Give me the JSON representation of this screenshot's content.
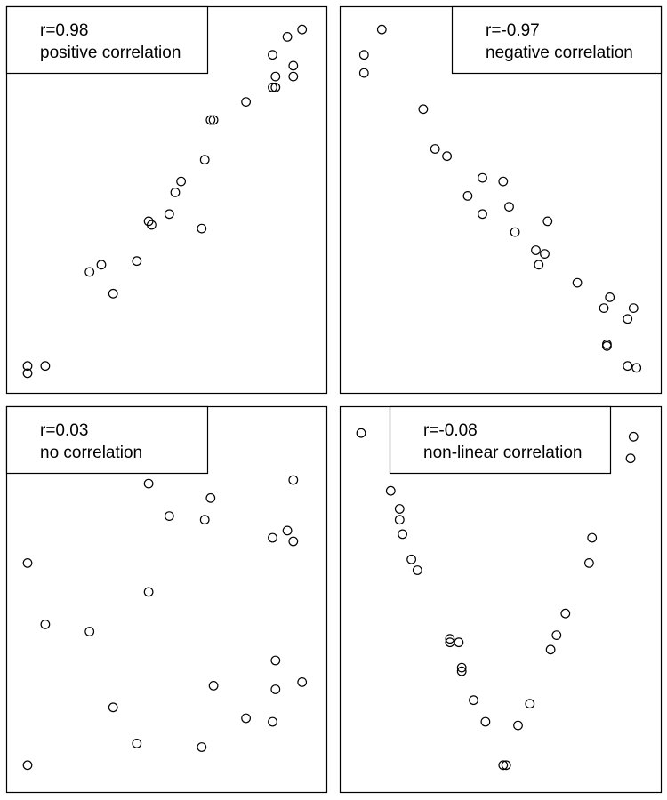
{
  "chart_data": [
    {
      "type": "scatter",
      "legend_lines": [
        "r=0.98",
        "positive correlation"
      ],
      "legend_position": "top-left",
      "grid": false,
      "xlim": [
        0,
        1
      ],
      "ylim": [
        0,
        1
      ],
      "points": [
        [
          0.03,
          0.02
        ],
        [
          0.03,
          0.04
        ],
        [
          0.09,
          0.04
        ],
        [
          0.24,
          0.3
        ],
        [
          0.28,
          0.32
        ],
        [
          0.32,
          0.24
        ],
        [
          0.4,
          0.33
        ],
        [
          0.44,
          0.44
        ],
        [
          0.45,
          0.43
        ],
        [
          0.51,
          0.46
        ],
        [
          0.53,
          0.52
        ],
        [
          0.55,
          0.55
        ],
        [
          0.62,
          0.42
        ],
        [
          0.63,
          0.61
        ],
        [
          0.65,
          0.72
        ],
        [
          0.66,
          0.72
        ],
        [
          0.77,
          0.77
        ],
        [
          0.86,
          0.81
        ],
        [
          0.87,
          0.81
        ],
        [
          0.87,
          0.84
        ],
        [
          0.86,
          0.9
        ],
        [
          0.91,
          0.95
        ],
        [
          0.93,
          0.84
        ],
        [
          0.93,
          0.87
        ],
        [
          0.96,
          0.97
        ]
      ]
    },
    {
      "type": "scatter",
      "legend_lines": [
        "r=-0.97",
        "negative correlation"
      ],
      "legend_position": "top-right",
      "grid": false,
      "xlim": [
        0,
        1
      ],
      "ylim": [
        0,
        1
      ],
      "points": [
        [
          0.04,
          0.85
        ],
        [
          0.04,
          0.9
        ],
        [
          0.1,
          0.97
        ],
        [
          0.24,
          0.75
        ],
        [
          0.28,
          0.64
        ],
        [
          0.32,
          0.62
        ],
        [
          0.39,
          0.51
        ],
        [
          0.44,
          0.46
        ],
        [
          0.44,
          0.56
        ],
        [
          0.51,
          0.55
        ],
        [
          0.53,
          0.48
        ],
        [
          0.55,
          0.41
        ],
        [
          0.62,
          0.36
        ],
        [
          0.65,
          0.35
        ],
        [
          0.63,
          0.32
        ],
        [
          0.66,
          0.44
        ],
        [
          0.76,
          0.27
        ],
        [
          0.85,
          0.2
        ],
        [
          0.87,
          0.23
        ],
        [
          0.95,
          0.2
        ],
        [
          0.93,
          0.17
        ],
        [
          0.86,
          0.095
        ],
        [
          0.86,
          0.1
        ],
        [
          0.93,
          0.04
        ],
        [
          0.96,
          0.035
        ]
      ]
    },
    {
      "type": "scatter",
      "legend_lines": [
        "r=0.03",
        "no correlation"
      ],
      "legend_position": "top-left",
      "grid": false,
      "xlim": [
        0,
        1
      ],
      "ylim": [
        0,
        1
      ],
      "points": [
        [
          0.03,
          0.04
        ],
        [
          0.03,
          0.6
        ],
        [
          0.09,
          0.43
        ],
        [
          0.24,
          0.41
        ],
        [
          0.32,
          0.2
        ],
        [
          0.4,
          0.1
        ],
        [
          0.44,
          0.52
        ],
        [
          0.44,
          0.82
        ],
        [
          0.51,
          0.73
        ],
        [
          0.53,
          0.88
        ],
        [
          0.55,
          0.95
        ],
        [
          0.62,
          0.09
        ],
        [
          0.63,
          0.72
        ],
        [
          0.65,
          0.78
        ],
        [
          0.66,
          0.26
        ],
        [
          0.77,
          0.17
        ],
        [
          0.86,
          0.16
        ],
        [
          0.87,
          0.25
        ],
        [
          0.87,
          0.33
        ],
        [
          0.86,
          0.67
        ],
        [
          0.91,
          0.69
        ],
        [
          0.93,
          0.66
        ],
        [
          0.93,
          0.83
        ],
        [
          0.96,
          0.27
        ]
      ]
    },
    {
      "type": "scatter",
      "legend_lines": [
        "r=-0.08",
        "non-linear correlation"
      ],
      "legend_position": "top",
      "grid": false,
      "xlim": [
        0,
        1
      ],
      "ylim": [
        0,
        1
      ],
      "points": [
        [
          0.03,
          0.96
        ],
        [
          0.13,
          0.8
        ],
        [
          0.16,
          0.75
        ],
        [
          0.16,
          0.72
        ],
        [
          0.17,
          0.68
        ],
        [
          0.2,
          0.61
        ],
        [
          0.22,
          0.58
        ],
        [
          0.33,
          0.39
        ],
        [
          0.33,
          0.38
        ],
        [
          0.36,
          0.38
        ],
        [
          0.37,
          0.31
        ],
        [
          0.37,
          0.3
        ],
        [
          0.41,
          0.22
        ],
        [
          0.45,
          0.16
        ],
        [
          0.51,
          0.04
        ],
        [
          0.52,
          0.04
        ],
        [
          0.56,
          0.15
        ],
        [
          0.6,
          0.21
        ],
        [
          0.67,
          0.36
        ],
        [
          0.69,
          0.4
        ],
        [
          0.72,
          0.46
        ],
        [
          0.8,
          0.6
        ],
        [
          0.81,
          0.67
        ],
        [
          0.94,
          0.89
        ],
        [
          0.95,
          0.95
        ]
      ]
    }
  ]
}
